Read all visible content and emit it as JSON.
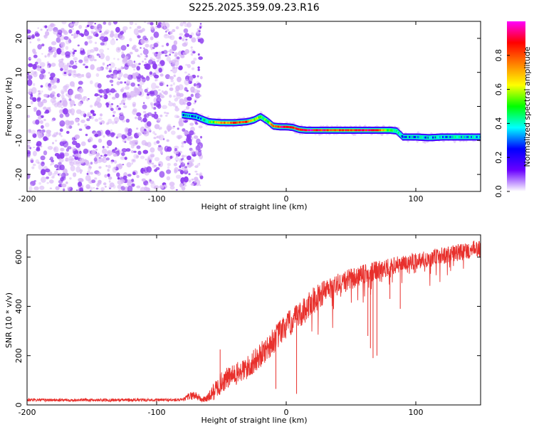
{
  "title": "S225.2025.359.09.23.R16",
  "colors": {
    "snr_line": "#e8302c",
    "speckle": "#8f3ff0",
    "speckle_light": "#d9b8f7",
    "axis": "#000000"
  },
  "colorbar": {
    "label": "Normalized spectral amplitude",
    "ticks": [
      "0.0",
      "0.2",
      "0.4",
      "0.6",
      "0.8"
    ],
    "tick_values": [
      0.0,
      0.2,
      0.4,
      0.6,
      0.8
    ],
    "range": [
      0.0,
      1.0
    ],
    "colormap": [
      "#ffffff",
      "#6a00ff",
      "#0000ff",
      "#00ffff",
      "#00ff00",
      "#ffff00",
      "#ff8000",
      "#ff0000",
      "#ff00ff"
    ]
  },
  "chart_data": [
    {
      "type": "heatmap",
      "title": "S225.2025.359.09.23.R16",
      "xlabel": "Height of straight line (km)",
      "ylabel": "Frequency (Hz)",
      "xlim": [
        -200,
        150
      ],
      "ylim": [
        -25,
        25
      ],
      "x_ticks": [
        -200,
        -100,
        0,
        100
      ],
      "x_tick_labels": [
        "-200",
        "-100",
        "0",
        "100"
      ],
      "y_ticks": [
        -20,
        -10,
        0,
        10,
        20
      ],
      "y_tick_labels": [
        "-20",
        "-10",
        "0",
        "10",
        "20"
      ],
      "noise_region_x": [
        -200,
        -65
      ],
      "carrier_line": {
        "x": [
          -80,
          -70,
          -60,
          -50,
          -40,
          -30,
          -25,
          -20,
          -15,
          -10,
          -5,
          0,
          5,
          10,
          15,
          20,
          30,
          40,
          50,
          60,
          70,
          80,
          85,
          90,
          95,
          100,
          110,
          120,
          130,
          140,
          150
        ],
        "y": [
          -2.5,
          -3.0,
          -4.5,
          -4.8,
          -4.8,
          -4.5,
          -4.0,
          -3.0,
          -4.2,
          -5.8,
          -6.0,
          -6.0,
          -6.2,
          -6.8,
          -7.0,
          -7.0,
          -7.0,
          -7.0,
          -7.0,
          -7.0,
          -7.0,
          -7.0,
          -7.2,
          -9.0,
          -9.0,
          -9.0,
          -9.2,
          -9.0,
          -9.0,
          -9.0,
          -9.0
        ],
        "amplitude": [
          0.35,
          0.3,
          0.45,
          0.75,
          0.8,
          0.85,
          0.6,
          0.55,
          0.5,
          0.8,
          0.85,
          0.9,
          0.85,
          0.85,
          0.9,
          0.9,
          0.85,
          0.8,
          0.85,
          0.9,
          0.85,
          0.5,
          0.45,
          0.3,
          0.35,
          0.35,
          0.35,
          0.35,
          0.35,
          0.35,
          0.35
        ]
      }
    },
    {
      "type": "line",
      "title": "",
      "xlabel": "Height of straight line (km)",
      "ylabel": "SNR (10 * v/v)",
      "xlim": [
        -200,
        150
      ],
      "ylim": [
        0,
        690
      ],
      "x_ticks": [
        -200,
        -100,
        0,
        100
      ],
      "x_tick_labels": [
        "-200",
        "-100",
        "0",
        "100"
      ],
      "y_ticks": [
        0,
        200,
        400,
        600
      ],
      "y_tick_labels": [
        "0",
        "200",
        "400",
        "600"
      ],
      "series": [
        {
          "name": "SNR",
          "x": [
            -200,
            -150,
            -100,
            -80,
            -75,
            -70,
            -65,
            -60,
            -55,
            -50,
            -45,
            -40,
            -30,
            -20,
            -10,
            0,
            10,
            20,
            30,
            40,
            50,
            60,
            70,
            80,
            90,
            100,
            110,
            120,
            130,
            140,
            150
          ],
          "y": [
            20,
            20,
            20,
            20,
            35,
            40,
            20,
            30,
            60,
            90,
            110,
            120,
            150,
            200,
            260,
            320,
            360,
            420,
            460,
            490,
            510,
            530,
            545,
            560,
            575,
            585,
            595,
            605,
            615,
            625,
            635
          ],
          "noise_amplitude": [
            6,
            6,
            6,
            6,
            15,
            20,
            10,
            20,
            40,
            45,
            45,
            45,
            50,
            50,
            55,
            55,
            55,
            55,
            50,
            45,
            45,
            40,
            40,
            35,
            35,
            35,
            35,
            35,
            35,
            35,
            35
          ],
          "spikes": [
            {
              "x": -51,
              "y": 225
            },
            {
              "x": -8,
              "y": 65
            },
            {
              "x": 8,
              "y": 45
            },
            {
              "x": 63,
              "y": 280
            },
            {
              "x": 65,
              "y": 230
            },
            {
              "x": 67,
              "y": 190
            },
            {
              "x": 70,
              "y": 200
            },
            {
              "x": 80,
              "y": 430
            },
            {
              "x": 88,
              "y": 390
            }
          ]
        }
      ]
    }
  ]
}
